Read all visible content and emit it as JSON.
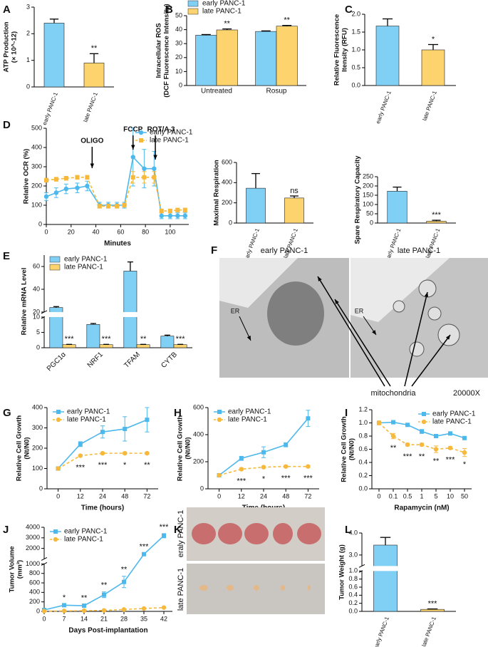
{
  "chart_data": [
    {
      "panel": "A",
      "type": "bar",
      "ylabel": [
        "ATP Production",
        "(× 10^-12)"
      ],
      "categories": [
        "early PANC-1",
        "late PANC-1"
      ],
      "values": [
        2.4,
        0.9
      ],
      "errors": [
        0.15,
        0.35
      ],
      "colors": [
        "#80cff5",
        "#fdd36d"
      ],
      "annotations": [
        null,
        "**"
      ],
      "ylim": [
        0,
        3
      ],
      "yticks": [
        0,
        1,
        2,
        3
      ]
    },
    {
      "panel": "B",
      "type": "bar",
      "ylabel": [
        "Intracellular ROS",
        "(DCF Fluorescence Intensity)"
      ],
      "categories": [
        "Untreated",
        "Rosup"
      ],
      "series": [
        {
          "name": "early PANC-1",
          "color": "#80cff5",
          "values": [
            36,
            38.7
          ],
          "errors": [
            0.5,
            0.4
          ],
          "annotations": [
            null,
            null
          ]
        },
        {
          "name": "late PANC-1",
          "color": "#fdd36d",
          "values": [
            39.8,
            42.5
          ],
          "errors": [
            0.7,
            0.5
          ],
          "annotations": [
            "**",
            "**"
          ]
        }
      ],
      "ylim": [
        0,
        50
      ],
      "yticks": [
        0,
        10,
        20,
        30,
        40,
        50
      ],
      "legend": "top"
    },
    {
      "panel": "C",
      "type": "bar",
      "ylabel": [
        "Relative Fluorescence",
        "Itensity (RFU)"
      ],
      "categories": [
        "early PANC-1",
        "late PANC-1"
      ],
      "values": [
        1.67,
        1.0
      ],
      "errors": [
        0.2,
        0.15
      ],
      "colors": [
        "#80cff5",
        "#fdd36d"
      ],
      "annotations": [
        null,
        "*"
      ],
      "ylim": [
        0,
        2
      ],
      "yticks": [
        {
          "value": 0,
          "label": "0.0"
        },
        {
          "value": 0.5,
          "label": "0.5"
        },
        {
          "value": 1,
          "label": "1.0"
        },
        {
          "value": 1.5,
          "label": "1.5"
        },
        {
          "value": 2,
          "label": "2.0"
        }
      ]
    },
    {
      "panel": "D",
      "type": "line",
      "xlabel": "Minutes",
      "ylabel": [
        "Relative OCR (%)"
      ],
      "x": [
        0,
        8,
        16,
        25,
        33,
        43,
        50,
        57,
        63,
        70,
        79,
        87,
        93,
        100,
        106,
        112
      ],
      "series": [
        {
          "name": "early PANC-1",
          "color": "#4db8ec",
          "marker": "circle",
          "dash": false,
          "values": [
            145,
            165,
            185,
            190,
            200,
            100,
            100,
            100,
            100,
            350,
            290,
            290,
            45,
            45,
            45,
            45
          ],
          "errors": [
            20,
            25,
            25,
            25,
            25,
            15,
            15,
            15,
            15,
            150,
            100,
            90,
            15,
            15,
            15,
            15
          ]
        },
        {
          "name": "late PANC-1",
          "color": "#f6b93b",
          "marker": "square",
          "dash": true,
          "values": [
            230,
            235,
            240,
            245,
            245,
            95,
            95,
            95,
            100,
            245,
            245,
            245,
            70,
            70,
            75,
            75
          ],
          "errors": [
            10,
            10,
            10,
            10,
            10,
            10,
            10,
            10,
            10,
            30,
            30,
            30,
            10,
            10,
            10,
            10
          ]
        }
      ],
      "xlim": [
        0,
        115
      ],
      "xticks": [
        0,
        20,
        40,
        60,
        80,
        100
      ],
      "ylim": [
        0,
        500
      ],
      "yticks": [
        0,
        100,
        200,
        300,
        400,
        500
      ],
      "markers": [
        {
          "label": "OLIGO",
          "x": 37
        },
        {
          "label": "FCCP",
          "x": 70
        },
        {
          "label": "ROT/A 3",
          "x": 88
        }
      ],
      "legend": "top-right"
    },
    {
      "type": "bar",
      "ylabel": [
        "Maximal Respiration"
      ],
      "categories": [
        "early PANC-1",
        "late PANC-1"
      ],
      "values": [
        345,
        248
      ],
      "errors": [
        145,
        20
      ],
      "colors": [
        "#80cff5",
        "#fdd36d"
      ],
      "annotations": [
        null,
        "ns"
      ],
      "ylim": [
        0,
        600
      ],
      "yticks": [
        0,
        200,
        400,
        600
      ]
    },
    {
      "type": "bar",
      "ylabel": [
        "Spare Respiratory Capacity"
      ],
      "categories": [
        "early PANC-1",
        "late PANC-1"
      ],
      "values": [
        172,
        10
      ],
      "errors": [
        22,
        5
      ],
      "colors": [
        "#80cff5",
        "#fdd36d"
      ],
      "annotations": [
        null,
        "***"
      ],
      "ylim": [
        0,
        250
      ],
      "yticks": [
        0,
        50,
        100,
        150,
        200,
        250
      ]
    },
    {
      "panel": "E",
      "type": "bar",
      "ylabel": [
        "Relative mRNA Level"
      ],
      "categories": [
        "PGC1α",
        "NRF1",
        "TFAM",
        "CYTB"
      ],
      "series": [
        {
          "name": "early PANC-1",
          "color": "#80cff5",
          "values": [
            24,
            7.6,
            56,
            3.8
          ],
          "errors": [
            0.8,
            0.3,
            8,
            0.3
          ],
          "annotations": [
            null,
            null,
            null,
            null
          ]
        },
        {
          "name": "late PANC-1",
          "color": "#fdd36d",
          "values": [
            1,
            1,
            1,
            1
          ],
          "errors": [
            0.1,
            0.1,
            0.1,
            0.1
          ],
          "annotations": [
            "***",
            "***",
            "**",
            "***"
          ]
        }
      ],
      "ylim": [
        0,
        70
      ],
      "ybreak": [
        10,
        20
      ],
      "yticks": [
        0,
        5,
        10,
        20,
        40,
        60
      ],
      "legend": "top-left"
    },
    {
      "panel": "F",
      "type": "image",
      "columns": [
        "early PANC-1",
        "late PANC-1"
      ],
      "annotations": [
        "ER",
        "ER",
        "mitochondria",
        "20000X"
      ]
    },
    {
      "panel": "G",
      "type": "line",
      "xlabel": "Time (hours)",
      "ylabel": [
        "Relative Cell Growth",
        "(Nt/N0)"
      ],
      "categories": [
        "0",
        "12",
        "24",
        "48",
        "72"
      ],
      "series": [
        {
          "name": "early PANC-1",
          "color": "#4db8ec",
          "marker": "square",
          "dash": false,
          "values": [
            100,
            220,
            280,
            295,
            340
          ],
          "errors": [
            8,
            12,
            30,
            60,
            60
          ]
        },
        {
          "name": "late PANC-1",
          "color": "#f6b93b",
          "marker": "circle",
          "dash": true,
          "values": [
            100,
            163,
            175,
            175,
            175
          ],
          "errors": [
            5,
            5,
            5,
            5,
            5
          ]
        }
      ],
      "annotations": [
        null,
        "***",
        "***",
        "*",
        "**"
      ],
      "annotation_side": "below",
      "ylim": [
        0,
        400
      ],
      "yticks": [
        0,
        100,
        200,
        300,
        400
      ],
      "legend": "top-left"
    },
    {
      "panel": "H",
      "type": "line",
      "xlabel": "Time (hours)",
      "ylabel": [
        "Relative Cell Growth",
        "(Nt/N0)"
      ],
      "categories": [
        "0",
        "12",
        "24",
        "48",
        "72"
      ],
      "series": [
        {
          "name": "early PANC-1",
          "color": "#4db8ec",
          "marker": "square",
          "dash": false,
          "values": [
            100,
            225,
            270,
            325,
            520
          ],
          "errors": [
            8,
            15,
            40,
            15,
            60
          ]
        },
        {
          "name": "late PANC-1",
          "color": "#f6b93b",
          "marker": "circle",
          "dash": true,
          "values": [
            100,
            145,
            160,
            165,
            165
          ],
          "errors": [
            5,
            8,
            8,
            8,
            8
          ]
        }
      ],
      "annotations": [
        null,
        "***",
        "*",
        "***",
        "***"
      ],
      "annotation_side": "below",
      "ylim": [
        0,
        600
      ],
      "yticks": [
        0,
        200,
        400,
        600
      ],
      "legend": "top-left"
    },
    {
      "panel": "I",
      "type": "line",
      "xlabel": "Rapamycin (nM)",
      "ylabel": [
        "Relative Cell Growth",
        "(Nt/N0)"
      ],
      "categories": [
        "0",
        "0.1",
        "0.5",
        "1",
        "5",
        "10",
        "50"
      ],
      "series": [
        {
          "name": "early PANC-1",
          "color": "#4db8ec",
          "marker": "square",
          "dash": false,
          "values": [
            1.0,
            1.01,
            0.97,
            0.87,
            0.8,
            0.84,
            0.77
          ],
          "errors": [
            0.01,
            0.01,
            0.01,
            0.03,
            0.01,
            0.01,
            0.02
          ]
        },
        {
          "name": "late PANC-1",
          "color": "#f6b93b",
          "marker": "circle",
          "dash": true,
          "values": [
            1.0,
            0.8,
            0.67,
            0.67,
            0.6,
            0.62,
            0.55
          ],
          "errors": [
            0.03,
            0.04,
            0.02,
            0.02,
            0.05,
            0.02,
            0.06
          ]
        }
      ],
      "annotations": [
        null,
        "**",
        "***",
        "**",
        "**",
        "***",
        "*"
      ],
      "annotation_side": "below",
      "ylim": [
        0,
        1.2
      ],
      "yticks": [
        {
          "value": 0,
          "label": "0.0"
        },
        {
          "value": 0.2,
          "label": "0.2"
        },
        {
          "value": 0.4,
          "label": "0.4"
        },
        {
          "value": 0.6,
          "label": "0.6"
        },
        {
          "value": 0.8,
          "label": "0.8"
        },
        {
          "value": 1,
          "label": "1.0"
        },
        {
          "value": 1.2,
          "label": "1.2"
        }
      ],
      "legend": "top-right"
    },
    {
      "panel": "J",
      "type": "line",
      "xlabel": "Days Post-implantation",
      "ylabel": [
        "Tumor Volume",
        "(mm³)"
      ],
      "x": [
        0,
        7,
        14,
        21,
        28,
        35,
        42
      ],
      "series": [
        {
          "name": "early PANC-1",
          "color": "#4db8ec",
          "marker": "square",
          "dash": false,
          "values": [
            30,
            130,
            120,
            350,
            620,
            1450,
            3200
          ],
          "errors": [
            5,
            20,
            20,
            60,
            120,
            80,
            200
          ]
        },
        {
          "name": "late PANC-1",
          "color": "#f6b93b",
          "marker": "circle",
          "dash": true,
          "values": [
            5,
            10,
            15,
            20,
            40,
            60,
            80
          ],
          "errors": [
            2,
            3,
            4,
            5,
            8,
            10,
            12
          ]
        }
      ],
      "annotations": [
        null,
        "*",
        "**",
        "**",
        "**",
        "***",
        "***"
      ],
      "annotation_side": "above",
      "xlim": [
        0,
        45
      ],
      "xticks": [
        0,
        7,
        14,
        21,
        28,
        35,
        42
      ],
      "ylim": [
        0,
        4000
      ],
      "ybreak": [
        1000,
        1000
      ],
      "yticks": [
        0,
        200,
        400,
        600,
        800,
        1000,
        2000,
        3000,
        4000
      ],
      "legend": "top-left"
    },
    {
      "panel": "K",
      "type": "image",
      "rows": [
        "eraly PANC-1",
        "late PANC-1"
      ]
    },
    {
      "panel": "L",
      "type": "bar",
      "ylabel": [
        "Tumor Weight (g)"
      ],
      "categories": [
        "early PANC-1",
        "late PANC-1"
      ],
      "values": [
        3.45,
        0.05
      ],
      "errors": [
        0.35,
        0.01
      ],
      "colors": [
        "#80cff5",
        "#fdd36d"
      ],
      "annotations": [
        null,
        "***"
      ],
      "ylim": [
        0,
        4
      ],
      "ybreak": [
        1,
        2.5
      ],
      "yticks": [
        {
          "value": 0,
          "label": "0.0"
        },
        {
          "value": 0.2,
          "label": "0.2"
        },
        {
          "value": 0.4,
          "label": "0.4"
        },
        {
          "value": 0.6,
          "label": "0.6"
        },
        {
          "value": 0.8,
          "label": "0.8"
        },
        {
          "value": 1,
          "label": "1.0"
        },
        {
          "value": 3,
          "label": "3.0"
        },
        {
          "value": 4,
          "label": "4.0"
        }
      ]
    }
  ]
}
